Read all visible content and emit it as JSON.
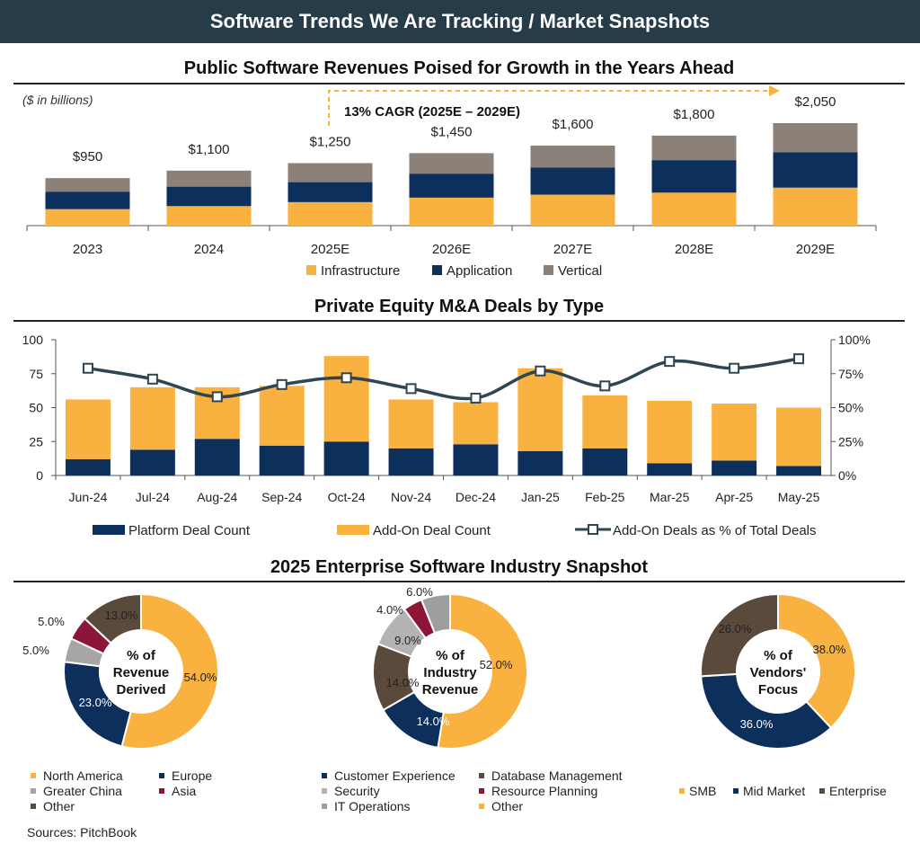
{
  "header": {
    "title": "Software Trends We Are Tracking / Market Snapshots"
  },
  "colors": {
    "orange": "#f9b13f",
    "navy": "#0c2f5c",
    "gray": "#8c8178",
    "line": "#2f4552",
    "lightgray": "#a6a6a6",
    "maroon": "#8c1538",
    "brown": "#5a4a3c"
  },
  "section1": {
    "title": "Public Software Revenues Poised for Growth in the Years Ahead"
  },
  "section2": {
    "title": "Private Equity M&A Deals by Type"
  },
  "section3": {
    "title": "2025 Enterprise Software Industry Snapshot"
  },
  "sources": "Sources: PitchBook",
  "chart_data": [
    {
      "type": "bar",
      "stacked": true,
      "title": "Public Software Revenues Poised for Growth in the Years Ahead",
      "unit_note": "($ in billions)",
      "annotation": "13% CAGR (2025E – 2029E)",
      "categories": [
        "2023",
        "2024",
        "2025E",
        "2026E",
        "2027E",
        "2028E",
        "2029E"
      ],
      "totals": [
        950,
        1100,
        1250,
        1450,
        1600,
        1800,
        2050
      ],
      "total_labels": [
        "$950",
        "$1,100",
        "$1,250",
        "$1,450",
        "$1,600",
        "$1,800",
        "$2,050"
      ],
      "series": [
        {
          "name": "Infrastructure",
          "color": "#f9b13f",
          "values": [
            330,
            390,
            470,
            560,
            620,
            660,
            760
          ]
        },
        {
          "name": "Application",
          "color": "#0c2f5c",
          "values": [
            350,
            390,
            400,
            480,
            540,
            650,
            710
          ]
        },
        {
          "name": "Vertical",
          "color": "#8c8178",
          "values": [
            270,
            320,
            380,
            410,
            440,
            490,
            580
          ]
        }
      ],
      "ylim": [
        0,
        2050
      ]
    },
    {
      "type": "bar",
      "stacked": true,
      "secondary_type": "line",
      "title": "Private Equity M&A Deals by Type",
      "categories": [
        "Jun-24",
        "Jul-24",
        "Aug-24",
        "Sep-24",
        "Oct-24",
        "Nov-24",
        "Dec-24",
        "Jan-25",
        "Feb-25",
        "Mar-25",
        "Apr-25",
        "May-25"
      ],
      "series": [
        {
          "name": "Platform Deal Count",
          "color": "#0c2f5c",
          "values": [
            12,
            19,
            27,
            22,
            25,
            20,
            23,
            18,
            20,
            9,
            11,
            7
          ]
        },
        {
          "name": "Add-On Deal Count",
          "color": "#f9b13f",
          "values": [
            44,
            46,
            38,
            44,
            63,
            36,
            31,
            61,
            39,
            46,
            42,
            43
          ]
        }
      ],
      "line_series": {
        "name": "Add-On Deals as % of Total Deals",
        "color": "#2f4552",
        "values": [
          79,
          71,
          58,
          67,
          72,
          64,
          57,
          77,
          66,
          84,
          79,
          86
        ]
      },
      "ylim": [
        0,
        100
      ],
      "y_ticks": [
        "0",
        "25",
        "50",
        "75",
        "100"
      ],
      "y2lim": [
        0,
        100
      ],
      "y2_ticks": [
        "0%",
        "25%",
        "50%",
        "75%",
        "100%"
      ]
    },
    {
      "type": "pie",
      "donut": true,
      "center_label": "% of Revenue Derived",
      "center_lines": [
        "% of",
        "Revenue",
        "Derived"
      ],
      "slices": [
        {
          "name": "North America",
          "value": 54.0,
          "label": "54.0%",
          "color": "#f9b13f"
        },
        {
          "name": "Europe",
          "value": 23.0,
          "label": "23.0%",
          "color": "#0c2f5c"
        },
        {
          "name": "Greater China",
          "value": 5.0,
          "label": "5.0%",
          "color": "#a6a6a6"
        },
        {
          "name": "Asia",
          "value": 5.0,
          "label": "5.0%",
          "color": "#8c1538"
        },
        {
          "name": "Other",
          "value": 13.0,
          "label": "13.0%",
          "color": "#5a4a3c"
        }
      ]
    },
    {
      "type": "pie",
      "donut": true,
      "center_label": "% of Industry Revenue",
      "center_lines": [
        "% of",
        "Industry",
        "Revenue"
      ],
      "slices": [
        {
          "name": "Other",
          "value": 52.0,
          "label": "52.0%",
          "color": "#f9b13f"
        },
        {
          "name": "Customer Experience",
          "value": 14.0,
          "label": "14.0%",
          "color": "#0c2f5c"
        },
        {
          "name": "Database Management",
          "value": 14.0,
          "label": "14.0%",
          "color": "#5a4a3c"
        },
        {
          "name": "Security",
          "value": 9.0,
          "label": "9.0%",
          "color": "#b3b3b3"
        },
        {
          "name": "Resource Planning",
          "value": 4.0,
          "label": "4.0%",
          "color": "#8c1538"
        },
        {
          "name": "IT Operations",
          "value": 6.0,
          "label": "6.0%",
          "color": "#9e9e9e"
        }
      ],
      "legend_order": [
        "Customer Experience",
        "Database Management",
        "Security",
        "Resource Planning",
        "IT Operations",
        "Other"
      ]
    },
    {
      "type": "pie",
      "donut": true,
      "center_label": "% of Vendors' Focus",
      "center_lines": [
        "% of",
        "Vendors'",
        "Focus"
      ],
      "slices": [
        {
          "name": "SMB",
          "value": 38.0,
          "label": "38.0%",
          "color": "#f9b13f"
        },
        {
          "name": "Mid Market",
          "value": 36.0,
          "label": "36.0%",
          "color": "#0c2f5c"
        },
        {
          "name": "Enterprise",
          "value": 26.0,
          "label": "26.0%",
          "color": "#5a4a3c"
        }
      ]
    }
  ]
}
